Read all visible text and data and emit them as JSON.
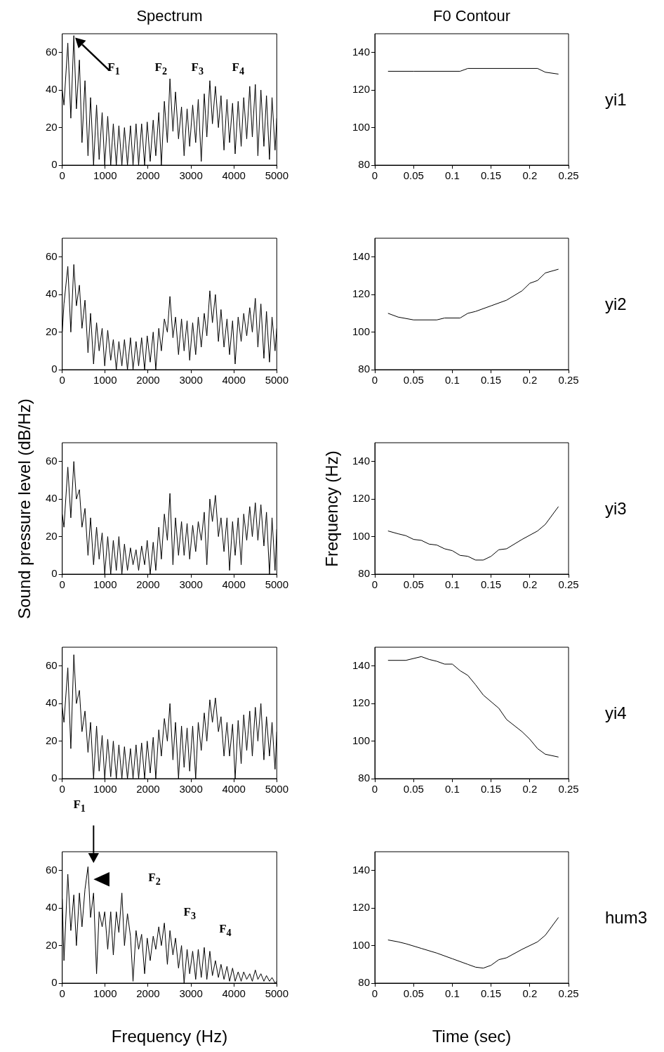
{
  "chart_data": [
    {
      "type": "line",
      "title": "Spectrum",
      "color": "#000000",
      "xlim": [
        0,
        5000
      ],
      "xticks": [
        0,
        1000,
        2000,
        3000,
        4000,
        5000
      ],
      "ylim": [
        0,
        70
      ],
      "yticks": [
        0,
        20,
        40,
        60
      ],
      "grid": false,
      "x": [
        0,
        40,
        130,
        200,
        270,
        330,
        400,
        460,
        530,
        600,
        660,
        730,
        800,
        860,
        930,
        990,
        1060,
        1130,
        1190,
        1260,
        1320,
        1390,
        1450,
        1520,
        1590,
        1650,
        1720,
        1780,
        1850,
        1920,
        1980,
        2050,
        2120,
        2180,
        2250,
        2310,
        2380,
        2450,
        2510,
        2580,
        2640,
        2710,
        2780,
        2840,
        2910,
        2970,
        3040,
        3110,
        3170,
        3240,
        3310,
        3370,
        3440,
        3500,
        3570,
        3640,
        3700,
        3770,
        3840,
        3900,
        3970,
        4030,
        4100,
        4170,
        4230,
        4300,
        4370,
        4430,
        4500,
        4560,
        4630,
        4700,
        4760,
        4830,
        4890,
        4960,
        5000
      ],
      "values": [
        40,
        32,
        65,
        25,
        69,
        30,
        56,
        12,
        45,
        5,
        36,
        0,
        32,
        3,
        28,
        0,
        26,
        0,
        22,
        0,
        21,
        0,
        20,
        0,
        21,
        0,
        22,
        0,
        22,
        0,
        23,
        2,
        24,
        5,
        28,
        0,
        34,
        12,
        46,
        18,
        39,
        14,
        31,
        5,
        30,
        10,
        32,
        12,
        35,
        2,
        38,
        15,
        45,
        22,
        42,
        20,
        37,
        8,
        35,
        12,
        33,
        6,
        34,
        10,
        36,
        14,
        42,
        15,
        43,
        5,
        40,
        10,
        37,
        3,
        36,
        8,
        25
      ],
      "annotations": [
        "F$_{1}$",
        "F$_{2}$",
        "F$_{3}$",
        "F$_{4}$"
      ]
    },
    {
      "type": "line",
      "title": "F0 Contour",
      "color": "#000000",
      "xlim": [
        0,
        0.25
      ],
      "xticks": [
        0,
        0.05,
        0.1,
        0.15,
        0.2,
        0.25
      ],
      "ylim": [
        80,
        150
      ],
      "yticks": [
        80,
        100,
        120,
        140
      ],
      "grid": false,
      "x": [
        0.017,
        0.05,
        0.11,
        0.12,
        0.21,
        0.22,
        0.237
      ],
      "values": [
        130,
        130,
        130,
        131.5,
        131.5,
        129.5,
        128.5
      ],
      "annotations": [
        "yi1"
      ]
    },
    {
      "type": "line",
      "color": "#000000",
      "xlim": [
        0,
        5000
      ],
      "xticks": [
        0,
        1000,
        2000,
        3000,
        4000,
        5000
      ],
      "ylim": [
        0,
        70
      ],
      "yticks": [
        0,
        20,
        40,
        60
      ],
      "grid": false,
      "x": [
        0,
        40,
        130,
        200,
        270,
        330,
        400,
        460,
        530,
        600,
        660,
        730,
        800,
        860,
        930,
        990,
        1060,
        1130,
        1190,
        1260,
        1320,
        1390,
        1450,
        1520,
        1590,
        1650,
        1720,
        1780,
        1850,
        1920,
        1980,
        2050,
        2120,
        2180,
        2250,
        2310,
        2380,
        2450,
        2510,
        2580,
        2640,
        2710,
        2780,
        2840,
        2910,
        2970,
        3040,
        3110,
        3170,
        3240,
        3310,
        3370,
        3440,
        3500,
        3570,
        3640,
        3700,
        3770,
        3840,
        3900,
        3970,
        4030,
        4100,
        4170,
        4230,
        4300,
        4370,
        4430,
        4500,
        4560,
        4630,
        4700,
        4760,
        4830,
        4890,
        4960,
        5000
      ],
      "values": [
        20,
        35,
        55,
        20,
        56,
        34,
        45,
        22,
        37,
        9,
        30,
        3,
        25,
        10,
        22,
        2,
        21,
        5,
        16,
        0,
        15,
        2,
        16,
        0,
        17,
        0,
        15,
        2,
        17,
        0,
        18,
        4,
        20,
        0,
        22,
        10,
        27,
        20,
        39,
        17,
        28,
        8,
        27,
        10,
        26,
        5,
        25,
        8,
        28,
        12,
        30,
        18,
        42,
        25,
        40,
        15,
        32,
        12,
        27,
        8,
        26,
        3,
        28,
        15,
        30,
        18,
        33,
        20,
        38,
        12,
        35,
        6,
        31,
        4,
        28,
        10,
        22
      ]
    },
    {
      "type": "line",
      "color": "#000000",
      "xlim": [
        0,
        0.25
      ],
      "xticks": [
        0,
        0.05,
        0.1,
        0.15,
        0.2,
        0.25
      ],
      "ylim": [
        80,
        150
      ],
      "yticks": [
        80,
        100,
        120,
        140
      ],
      "grid": false,
      "x": [
        0.017,
        0.03,
        0.05,
        0.08,
        0.09,
        0.11,
        0.12,
        0.13,
        0.15,
        0.17,
        0.19,
        0.2,
        0.21,
        0.22,
        0.237
      ],
      "values": [
        110,
        108,
        106.5,
        106.5,
        107.5,
        107.5,
        110,
        111,
        114,
        117,
        122,
        126,
        127.5,
        131.5,
        133.5
      ],
      "annotations": [
        "yi2"
      ]
    },
    {
      "type": "line",
      "ylabel": "Sound pressure level (dB/Hz)",
      "color": "#000000",
      "xlim": [
        0,
        5000
      ],
      "xticks": [
        0,
        1000,
        2000,
        3000,
        4000,
        5000
      ],
      "ylim": [
        0,
        70
      ],
      "yticks": [
        0,
        20,
        40,
        60
      ],
      "grid": false,
      "x": [
        0,
        40,
        130,
        200,
        270,
        330,
        400,
        460,
        530,
        600,
        660,
        730,
        800,
        860,
        930,
        990,
        1060,
        1130,
        1190,
        1260,
        1320,
        1390,
        1450,
        1520,
        1590,
        1650,
        1720,
        1780,
        1850,
        1920,
        1980,
        2050,
        2120,
        2180,
        2250,
        2310,
        2380,
        2450,
        2510,
        2580,
        2640,
        2710,
        2780,
        2840,
        2910,
        2970,
        3040,
        3110,
        3170,
        3240,
        3310,
        3370,
        3440,
        3500,
        3570,
        3640,
        3700,
        3770,
        3840,
        3900,
        3970,
        4030,
        4100,
        4170,
        4230,
        4300,
        4370,
        4430,
        4500,
        4560,
        4630,
        4700,
        4760,
        4830,
        4890,
        4960,
        5000
      ],
      "values": [
        32,
        25,
        57,
        30,
        60,
        40,
        45,
        25,
        35,
        10,
        30,
        5,
        25,
        8,
        22,
        0,
        20,
        0,
        18,
        2,
        20,
        0,
        16,
        2,
        14,
        5,
        13,
        2,
        15,
        5,
        18,
        0,
        17,
        2,
        25,
        8,
        32,
        18,
        43,
        5,
        30,
        10,
        28,
        10,
        27,
        8,
        26,
        12,
        28,
        18,
        33,
        5,
        40,
        28,
        42,
        20,
        30,
        12,
        30,
        2,
        28,
        10,
        30,
        5,
        32,
        18,
        36,
        20,
        38,
        18,
        37,
        15,
        33,
        0,
        30,
        2,
        24
      ]
    },
    {
      "type": "line",
      "ylabel": "Frequency (Hz)",
      "color": "#000000",
      "xlim": [
        0,
        0.25
      ],
      "xticks": [
        0,
        0.05,
        0.1,
        0.15,
        0.2,
        0.25
      ],
      "ylim": [
        80,
        150
      ],
      "yticks": [
        80,
        100,
        120,
        140
      ],
      "grid": false,
      "x": [
        0.017,
        0.03,
        0.04,
        0.05,
        0.06,
        0.07,
        0.08,
        0.09,
        0.1,
        0.11,
        0.12,
        0.13,
        0.14,
        0.15,
        0.16,
        0.17,
        0.19,
        0.21,
        0.22,
        0.237
      ],
      "values": [
        103,
        101.5,
        100.5,
        98.5,
        98,
        96,
        95.5,
        93.5,
        92.5,
        90,
        89.5,
        87.5,
        87.5,
        89.5,
        93,
        93.5,
        98.5,
        103,
        106.5,
        116
      ],
      "annotations": [
        "yi3"
      ]
    },
    {
      "type": "line",
      "color": "#000000",
      "xlim": [
        0,
        5000
      ],
      "xticks": [
        0,
        1000,
        2000,
        3000,
        4000,
        5000
      ],
      "ylim": [
        0,
        70
      ],
      "yticks": [
        0,
        20,
        40,
        60
      ],
      "grid": false,
      "x": [
        0,
        40,
        130,
        200,
        270,
        330,
        400,
        460,
        530,
        600,
        660,
        730,
        800,
        860,
        930,
        990,
        1060,
        1130,
        1190,
        1260,
        1320,
        1390,
        1450,
        1520,
        1590,
        1650,
        1720,
        1780,
        1850,
        1920,
        1980,
        2050,
        2120,
        2180,
        2250,
        2310,
        2380,
        2450,
        2510,
        2580,
        2640,
        2710,
        2780,
        2840,
        2910,
        2970,
        3040,
        3110,
        3170,
        3240,
        3310,
        3370,
        3440,
        3500,
        3570,
        3640,
        3700,
        3770,
        3840,
        3900,
        3970,
        4030,
        4100,
        4170,
        4230,
        4300,
        4370,
        4430,
        4500,
        4560,
        4630,
        4700,
        4760,
        4830,
        4890,
        4960,
        5000
      ],
      "values": [
        38,
        30,
        59,
        16,
        66,
        40,
        47,
        25,
        36,
        14,
        30,
        0,
        28,
        4,
        23,
        0,
        21,
        1,
        20,
        0,
        18,
        0,
        17,
        0,
        16,
        0,
        18,
        0,
        19,
        0,
        20,
        3,
        22,
        0,
        26,
        12,
        32,
        20,
        40,
        10,
        30,
        0,
        28,
        6,
        27,
        4,
        28,
        0,
        30,
        15,
        35,
        20,
        42,
        30,
        43,
        25,
        33,
        12,
        30,
        12,
        29,
        0,
        31,
        8,
        34,
        15,
        36,
        12,
        38,
        20,
        40,
        10,
        33,
        12,
        30,
        5,
        25
      ]
    },
    {
      "type": "line",
      "color": "#000000",
      "xlim": [
        0,
        0.25
      ],
      "xticks": [
        0,
        0.05,
        0.1,
        0.15,
        0.2,
        0.25
      ],
      "ylim": [
        80,
        150
      ],
      "yticks": [
        80,
        100,
        120,
        140
      ],
      "grid": false,
      "x": [
        0.017,
        0.04,
        0.06,
        0.07,
        0.08,
        0.09,
        0.1,
        0.11,
        0.12,
        0.13,
        0.14,
        0.16,
        0.17,
        0.19,
        0.2,
        0.21,
        0.22,
        0.237
      ],
      "values": [
        143,
        143,
        145,
        143.5,
        142.5,
        141,
        141,
        137.5,
        135,
        130,
        124.5,
        117.5,
        111.5,
        105,
        101,
        96,
        93,
        91.5
      ],
      "annotations": [
        "yi4"
      ]
    },
    {
      "type": "line",
      "xlabel": "Frequency (Hz)",
      "color": "#000000",
      "xlim": [
        0,
        5000
      ],
      "xticks": [
        0,
        1000,
        2000,
        3000,
        4000,
        5000
      ],
      "ylim": [
        0,
        70
      ],
      "yticks": [
        0,
        20,
        40,
        60
      ],
      "grid": false,
      "x": [
        0,
        40,
        130,
        200,
        270,
        330,
        400,
        460,
        530,
        600,
        660,
        730,
        800,
        860,
        930,
        990,
        1060,
        1130,
        1190,
        1260,
        1320,
        1390,
        1450,
        1520,
        1590,
        1650,
        1720,
        1780,
        1850,
        1920,
        1980,
        2050,
        2120,
        2180,
        2250,
        2310,
        2380,
        2450,
        2510,
        2580,
        2640,
        2710,
        2780,
        2840,
        2910,
        2970,
        3040,
        3110,
        3170,
        3240,
        3310,
        3370,
        3440,
        3500,
        3570,
        3640,
        3700,
        3770,
        3840,
        3900,
        3970,
        4030,
        4100,
        4170,
        4230,
        4300,
        4370,
        4430,
        4500,
        4560,
        4630,
        4700,
        4760,
        4830,
        4890,
        4960,
        5000
      ],
      "values": [
        45,
        12,
        58,
        28,
        47,
        20,
        48,
        30,
        50,
        62,
        35,
        48,
        5,
        38,
        30,
        38,
        18,
        38,
        15,
        38,
        27,
        48,
        20,
        37,
        25,
        1,
        28,
        18,
        26,
        5,
        24,
        12,
        25,
        18,
        30,
        20,
        32,
        10,
        28,
        15,
        24,
        8,
        20,
        0,
        18,
        5,
        17,
        2,
        18,
        3,
        19,
        2,
        17,
        4,
        12,
        3,
        10,
        2,
        9,
        1,
        8,
        1,
        6,
        1,
        6,
        2,
        5,
        1,
        7,
        2,
        5,
        1,
        4,
        1,
        3,
        0,
        1
      ],
      "annotations": [
        "F$_{1}$",
        "F$_{2}$",
        "F$_{3}$",
        "F$_{4}$"
      ]
    },
    {
      "type": "line",
      "xlabel": "Time (sec)",
      "color": "#000000",
      "xlim": [
        0,
        0.25
      ],
      "xticks": [
        0,
        0.05,
        0.1,
        0.15,
        0.2,
        0.25
      ],
      "ylim": [
        80,
        150
      ],
      "yticks": [
        80,
        100,
        120,
        140
      ],
      "grid": false,
      "x": [
        0.017,
        0.03,
        0.04,
        0.06,
        0.08,
        0.1,
        0.12,
        0.13,
        0.14,
        0.15,
        0.16,
        0.17,
        0.19,
        0.21,
        0.22,
        0.237
      ],
      "values": [
        103,
        102,
        101,
        98.5,
        96,
        93,
        90,
        88.5,
        88,
        89.5,
        92.5,
        93.5,
        98,
        102,
        105.5,
        115
      ],
      "annotations": [
        "hum3"
      ]
    }
  ]
}
